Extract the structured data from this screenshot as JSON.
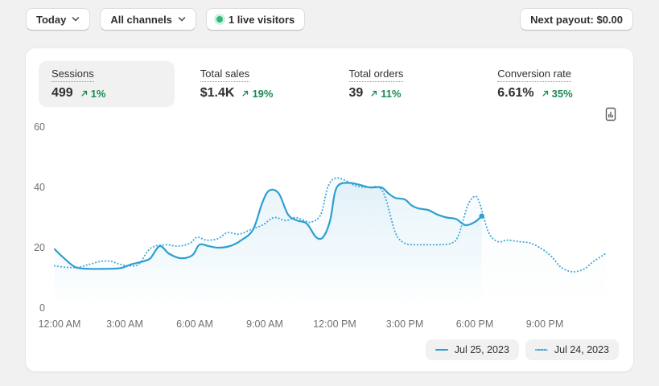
{
  "topbar": {
    "date_filter_label": "Today",
    "channel_filter_label": "All channels",
    "live_visitors_label": "1 live visitors",
    "next_payout_label": "Next payout: $0.00"
  },
  "metrics": {
    "items": [
      {
        "label": "Sessions",
        "value": "499",
        "delta": "1%",
        "selected": true
      },
      {
        "label": "Total sales",
        "value": "$1.4K",
        "delta": "19%",
        "selected": false
      },
      {
        "label": "Total orders",
        "value": "39",
        "delta": "11%",
        "selected": false
      },
      {
        "label": "Conversion rate",
        "value": "6.61%",
        "delta": "35%",
        "selected": false
      }
    ]
  },
  "icons": {
    "delta": "arrow-up-right",
    "dropdown": "chevron-down",
    "live": "green-dot",
    "export": "file-chart"
  },
  "colors": {
    "delta_green": "#1a8a53",
    "live_dot": "#30b878",
    "line_solid": "#2e9fd0",
    "line_dotted": "#41a8d6",
    "axis_text": "#6d7175"
  },
  "chart_data": {
    "type": "line",
    "grid": false,
    "legend_position": "bottom-right",
    "x_axis": {
      "unit": "time of day (hours)",
      "range_hours": [
        0,
        24
      ],
      "tick_hours": [
        0,
        3,
        6,
        9,
        12,
        15,
        18,
        21
      ],
      "tick_labels": [
        "12:00 AM",
        "3:00 AM",
        "6:00 AM",
        "9:00 AM",
        "12:00 PM",
        "3:00 PM",
        "6:00 PM",
        "9:00 PM"
      ]
    },
    "y_axis": {
      "ticks": [
        0,
        20,
        40,
        60
      ],
      "range": [
        0,
        60
      ]
    },
    "series": [
      {
        "name": "Jul 25, 2023",
        "style": "solid",
        "color": "#2e9fd0",
        "area_opacity": 0.16,
        "end_marker": true,
        "points": [
          [
            0,
            19.5
          ],
          [
            0.4,
            16.5
          ],
          [
            0.9,
            13.5
          ],
          [
            1.5,
            13
          ],
          [
            2.2,
            13
          ],
          [
            2.8,
            13.2
          ],
          [
            3.3,
            14.5
          ],
          [
            3.8,
            15.5
          ],
          [
            4.1,
            16.5
          ],
          [
            4.5,
            20.5
          ],
          [
            4.9,
            18
          ],
          [
            5.4,
            16.5
          ],
          [
            5.9,
            17.5
          ],
          [
            6.2,
            21
          ],
          [
            6.6,
            20.5
          ],
          [
            7,
            20
          ],
          [
            7.5,
            20.5
          ],
          [
            8,
            22.5
          ],
          [
            8.5,
            26
          ],
          [
            8.9,
            35
          ],
          [
            9.2,
            39
          ],
          [
            9.6,
            38
          ],
          [
            10,
            31
          ],
          [
            10.4,
            29
          ],
          [
            10.8,
            28
          ],
          [
            11.2,
            23.5
          ],
          [
            11.5,
            23.5
          ],
          [
            11.8,
            29
          ],
          [
            12,
            38
          ],
          [
            12.2,
            41
          ],
          [
            12.6,
            41.5
          ],
          [
            13,
            41
          ],
          [
            13.5,
            40
          ],
          [
            14,
            40
          ],
          [
            14.3,
            38
          ],
          [
            14.6,
            36.5
          ],
          [
            15,
            36
          ],
          [
            15.3,
            34
          ],
          [
            15.6,
            33
          ],
          [
            16,
            32.5
          ],
          [
            16.4,
            31
          ],
          [
            16.8,
            30
          ],
          [
            17.2,
            29.5
          ],
          [
            17.6,
            27.5
          ],
          [
            18,
            28.5
          ],
          [
            18.3,
            30.5
          ]
        ]
      },
      {
        "name": "Jul 24, 2023",
        "style": "dotted",
        "color": "#41a8d6",
        "area_opacity": 0.06,
        "end_marker": false,
        "points": [
          [
            0,
            14
          ],
          [
            0.5,
            13.5
          ],
          [
            1,
            13.5
          ],
          [
            1.5,
            14.5
          ],
          [
            2,
            15.5
          ],
          [
            2.4,
            15.5
          ],
          [
            2.8,
            14.5
          ],
          [
            3.2,
            14
          ],
          [
            3.6,
            14.5
          ],
          [
            4,
            19
          ],
          [
            4.3,
            20.5
          ],
          [
            4.8,
            21
          ],
          [
            5.3,
            20.5
          ],
          [
            5.8,
            21.5
          ],
          [
            6.1,
            23.5
          ],
          [
            6.5,
            22.5
          ],
          [
            7,
            23
          ],
          [
            7.4,
            25
          ],
          [
            7.9,
            24.5
          ],
          [
            8.4,
            26
          ],
          [
            8.9,
            27.5
          ],
          [
            9.4,
            30
          ],
          [
            9.9,
            29
          ],
          [
            10.3,
            30
          ],
          [
            10.7,
            29
          ],
          [
            11,
            28.5
          ],
          [
            11.4,
            31
          ],
          [
            11.7,
            40
          ],
          [
            12,
            43
          ],
          [
            12.4,
            42.5
          ],
          [
            12.9,
            40.5
          ],
          [
            13.4,
            40
          ],
          [
            13.9,
            40
          ],
          [
            14.2,
            36
          ],
          [
            14.6,
            25
          ],
          [
            15,
            21.5
          ],
          [
            15.5,
            21
          ],
          [
            16,
            21
          ],
          [
            16.5,
            21
          ],
          [
            17,
            21.5
          ],
          [
            17.3,
            24
          ],
          [
            17.7,
            34
          ],
          [
            18,
            37
          ],
          [
            18.2,
            35
          ],
          [
            18.6,
            25
          ],
          [
            19,
            22
          ],
          [
            19.4,
            22.5
          ],
          [
            19.9,
            22
          ],
          [
            20.4,
            21.5
          ],
          [
            20.9,
            19.5
          ],
          [
            21.3,
            17
          ],
          [
            21.7,
            13.5
          ],
          [
            22.2,
            12
          ],
          [
            22.7,
            13
          ],
          [
            23.1,
            15.5
          ],
          [
            23.6,
            18
          ]
        ]
      }
    ]
  }
}
